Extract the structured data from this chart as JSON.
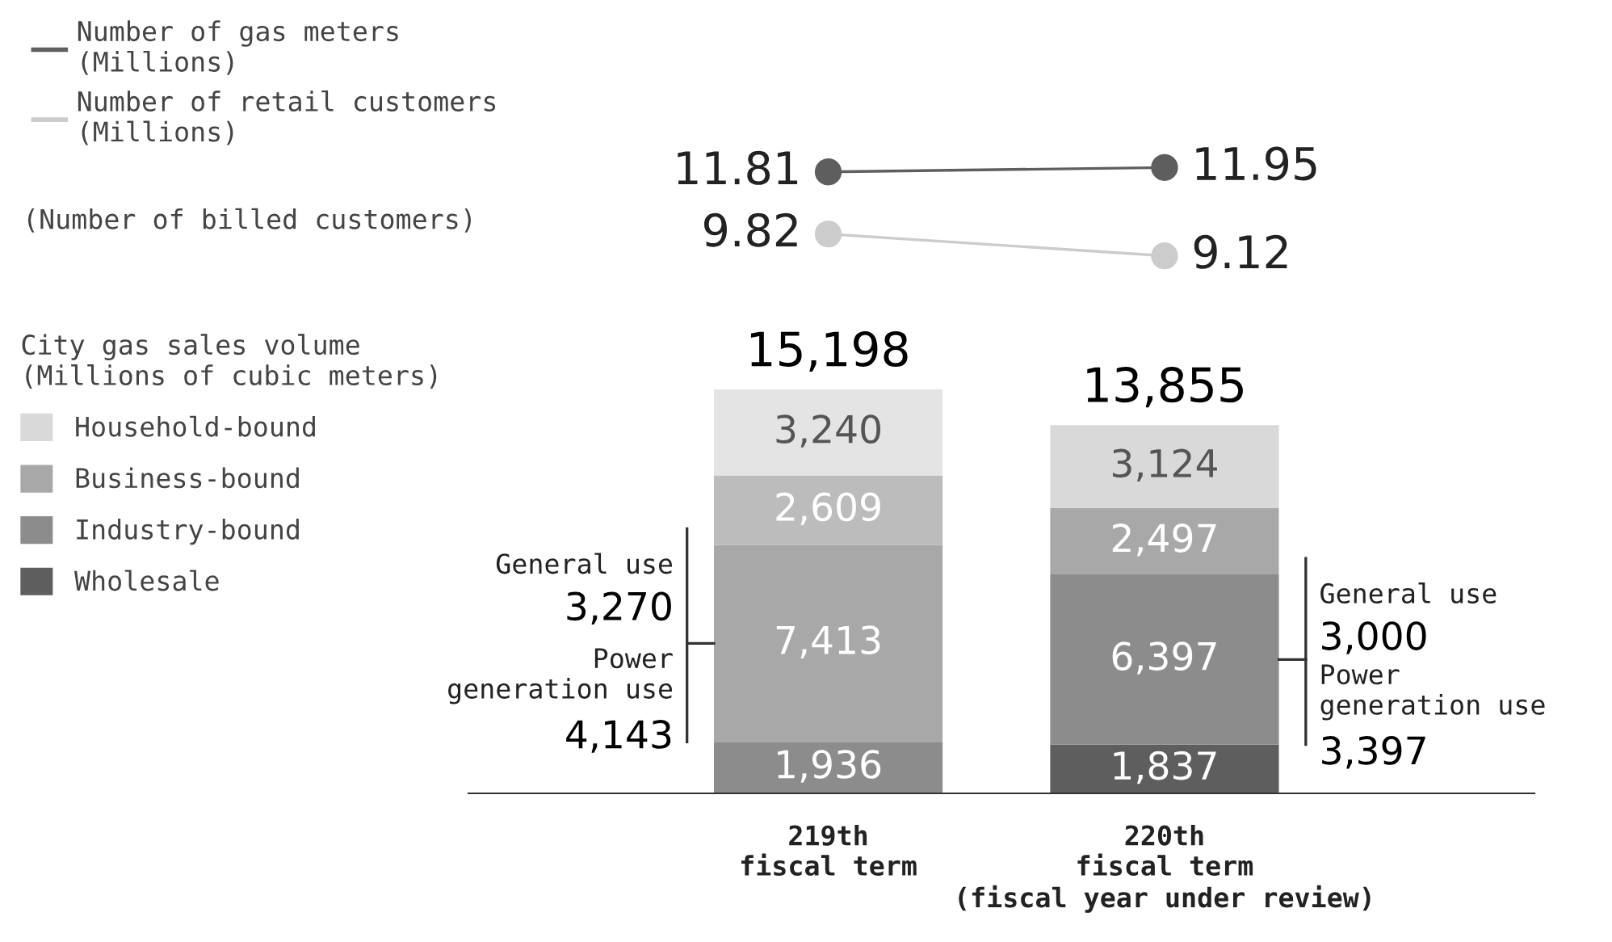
{
  "chart_data": [
    {
      "type": "line",
      "categories": [
        null,
        null
      ],
      "data_labels": true,
      "marker": "circle",
      "line_style": "solid",
      "legend": "top left",
      "series": [
        {
          "name": "Number of gas meters\n(Millions)",
          "color": "#5e5e5e",
          "values": [
            11.81,
            11.95
          ]
        },
        {
          "name": "Number of retail customers\n(Millions)",
          "color": "#cccccc",
          "values": [
            9.82,
            9.12
          ]
        }
      ],
      "annotations": [
        "(Number of billed customers)"
      ]
    },
    {
      "type": "bar",
      "stacked": true,
      "legend": "left",
      "legend_title": "City gas sales volume\n(Millions of cubic meters)",
      "categories": [
        "219th\nfiscal term",
        "220th\nfiscal term\n(fiscal year under review)"
      ],
      "series": [
        {
          "name": "Wholesale",
          "color": "#5e5e5e",
          "colors": [
            "#8c8c8c",
            "#5e5e5e"
          ],
          "values": [
            1936,
            1837
          ],
          "value_labels": [
            "1,936",
            "1,837"
          ]
        },
        {
          "name": "Industry-bound",
          "color": "#8c8c8c",
          "colors": [
            "#a8a8a8",
            "#8c8c8c"
          ],
          "values": [
            7413,
            6397
          ],
          "value_labels": [
            "7,413",
            "6,397"
          ]
        },
        {
          "name": "Business-bound",
          "color": "#a8a8a8",
          "colors": [
            "#bcbcbc",
            "#a8a8a8"
          ],
          "values": [
            2609,
            2497
          ],
          "value_labels": [
            "2,609",
            "2,497"
          ]
        },
        {
          "name": "Household-bound",
          "color": "#d9d9d9",
          "colors": [
            "#e4e4e4",
            "#d9d9d9"
          ],
          "values": [
            3240,
            3124
          ],
          "value_labels": [
            "3,240",
            "3,124"
          ]
        }
      ],
      "totals": [
        "15,198",
        "13,855"
      ],
      "annotations": [
        "General use\n3,270",
        "Power\ngeneration use\n4,143",
        "General use\n3,000",
        "Power\ngeneration use\n3,397"
      ]
    }
  ]
}
